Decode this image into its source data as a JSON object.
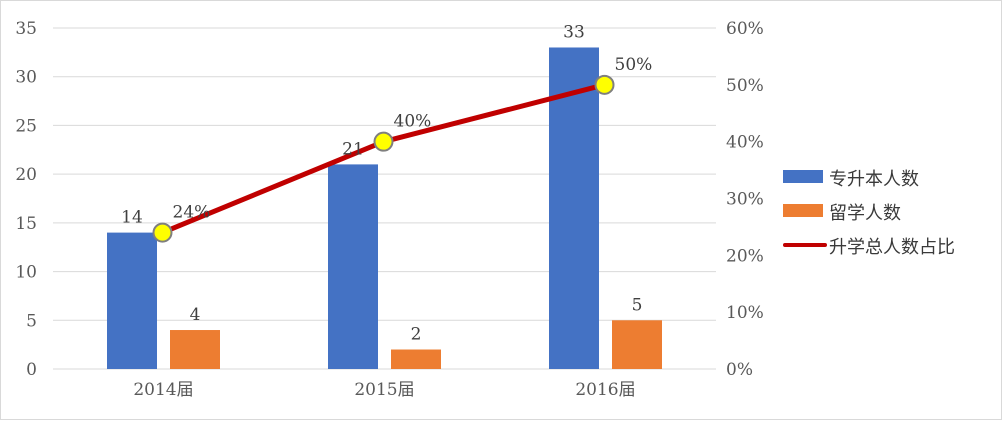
{
  "chart_data": {
    "type": "bar",
    "categories": [
      "2014届",
      "2015届",
      "2016届"
    ],
    "series": [
      {
        "name": "专升本人数",
        "type": "bar",
        "axis": "left",
        "values": [
          14,
          21,
          33
        ],
        "color": "#4472c4"
      },
      {
        "name": "留学人数",
        "type": "bar",
        "axis": "left",
        "values": [
          4,
          2,
          5
        ],
        "color": "#ed7d31"
      },
      {
        "name": "升学总人数占比",
        "type": "line",
        "axis": "right",
        "values": [
          24,
          40,
          50
        ],
        "labels": [
          "24%",
          "40%",
          "50%"
        ],
        "color": "#c00000",
        "marker_color": "#ffff00"
      }
    ],
    "y_left": {
      "min": 0,
      "max": 35,
      "step": 5,
      "ticks": [
        "0",
        "5",
        "10",
        "15",
        "20",
        "25",
        "30",
        "35"
      ]
    },
    "y_right": {
      "min": 0,
      "max": 60,
      "step": 10,
      "ticks": [
        "0%",
        "10%",
        "20%",
        "30%",
        "40%",
        "50%",
        "60%"
      ]
    },
    "legend_position": "right",
    "grid": true
  }
}
